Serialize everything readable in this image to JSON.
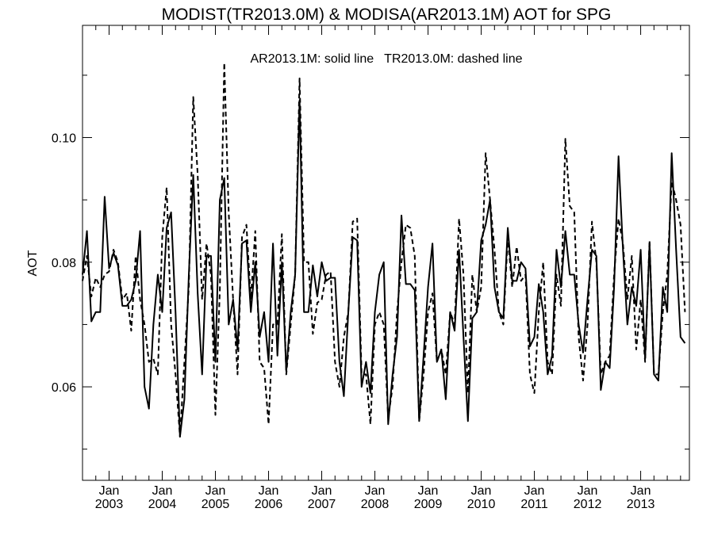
{
  "chart_data": {
    "type": "line",
    "title": "MODIST(TR2013.0M) & MODISA(AR2013.1M)  AOT for SPG",
    "ylabel": "AOT",
    "xlabel": "",
    "annotation": "AR2013.1M: solid line   TR2013.0M: dashed line",
    "x_start": "2002-07",
    "x_step": "1 month",
    "xlim": [
      "2002-07",
      "2013-12"
    ],
    "ylim": [
      0.045,
      0.118
    ],
    "y_ticks": [
      0.06,
      0.08,
      0.1
    ],
    "y_tick_labels": [
      "0.06",
      "0.08",
      "0.10"
    ],
    "x_ticks": [
      {
        "month": "Jan",
        "year": "2003",
        "date": "2003-01"
      },
      {
        "month": "Jan",
        "year": "2004",
        "date": "2004-01"
      },
      {
        "month": "Jan",
        "year": "2005",
        "date": "2005-01"
      },
      {
        "month": "Jan",
        "year": "2006",
        "date": "2006-01"
      },
      {
        "month": "Jan",
        "year": "2007",
        "date": "2007-01"
      },
      {
        "month": "Jan",
        "year": "2008",
        "date": "2008-01"
      },
      {
        "month": "Jan",
        "year": "2009",
        "date": "2009-01"
      },
      {
        "month": "Jan",
        "year": "2010",
        "date": "2010-01"
      },
      {
        "month": "Jan",
        "year": "2011",
        "date": "2011-01"
      },
      {
        "month": "Jan",
        "year": "2012",
        "date": "2012-01"
      },
      {
        "month": "Jan",
        "year": "2013",
        "date": "2013-01"
      }
    ],
    "grid": false,
    "series": [
      {
        "name": "AR2013.1M",
        "style": "solid",
        "color": "#000000",
        "values": [
          0.078,
          0.085,
          0.0705,
          0.072,
          0.072,
          0.0905,
          0.079,
          0.0815,
          0.0795,
          0.073,
          0.073,
          0.074,
          0.077,
          0.085,
          0.06,
          0.0565,
          0.07,
          0.078,
          0.072,
          0.0855,
          0.088,
          0.072,
          0.052,
          0.058,
          0.078,
          0.094,
          0.075,
          0.062,
          0.081,
          0.081,
          0.064,
          0.09,
          0.0935,
          0.07,
          0.074,
          0.066,
          0.083,
          0.0835,
          0.072,
          0.08,
          0.068,
          0.072,
          0.064,
          0.083,
          0.065,
          0.08,
          0.0625,
          0.072,
          0.078,
          0.106,
          0.072,
          0.072,
          0.0795,
          0.0745,
          0.08,
          0.077,
          0.0775,
          0.0775,
          0.064,
          0.0585,
          0.072,
          0.084,
          0.0835,
          0.06,
          0.064,
          0.059,
          0.072,
          0.078,
          0.08,
          0.054,
          0.062,
          0.068,
          0.0875,
          0.0765,
          0.0765,
          0.0755,
          0.0545,
          0.065,
          0.076,
          0.083,
          0.064,
          0.066,
          0.058,
          0.072,
          0.069,
          0.082,
          0.068,
          0.0545,
          0.071,
          0.072,
          0.0835,
          0.086,
          0.09,
          0.076,
          0.072,
          0.071,
          0.0855,
          0.077,
          0.077,
          0.08,
          0.079,
          0.0665,
          0.068,
          0.0765,
          0.072,
          0.062,
          0.065,
          0.082,
          0.076,
          0.085,
          0.078,
          0.078,
          0.07,
          0.0655,
          0.074,
          0.082,
          0.081,
          0.0595,
          0.064,
          0.063,
          0.076,
          0.097,
          0.082,
          0.07,
          0.076,
          0.073,
          0.082,
          0.0645,
          0.083,
          0.062,
          0.061,
          0.076,
          0.072,
          0.0975,
          0.082,
          0.068,
          0.067
        ]
      },
      {
        "name": "TR2013.0M",
        "style": "dashed",
        "color": "#000000",
        "values": [
          0.077,
          0.081,
          0.0745,
          0.0775,
          0.076,
          0.078,
          0.0785,
          0.082,
          0.08,
          0.074,
          0.075,
          0.069,
          0.081,
          0.074,
          0.07,
          0.064,
          0.0645,
          0.062,
          0.084,
          0.092,
          0.07,
          0.062,
          0.052,
          0.064,
          0.076,
          0.1065,
          0.094,
          0.074,
          0.083,
          0.078,
          0.0555,
          0.0755,
          0.112,
          0.088,
          0.074,
          0.062,
          0.084,
          0.086,
          0.074,
          0.085,
          0.064,
          0.063,
          0.054,
          0.07,
          0.07,
          0.0845,
          0.062,
          0.07,
          0.078,
          0.1095,
          0.08,
          0.08,
          0.0685,
          0.0735,
          0.074,
          0.078,
          0.0785,
          0.064,
          0.06,
          0.068,
          0.072,
          0.0865,
          0.087,
          0.062,
          0.062,
          0.054,
          0.07,
          0.072,
          0.07,
          0.055,
          0.06,
          0.072,
          0.08,
          0.086,
          0.0855,
          0.081,
          0.0545,
          0.062,
          0.072,
          0.075,
          0.064,
          0.066,
          0.062,
          0.072,
          0.07,
          0.087,
          0.078,
          0.059,
          0.078,
          0.072,
          0.076,
          0.0975,
          0.09,
          0.082,
          0.072,
          0.07,
          0.084,
          0.076,
          0.0825,
          0.077,
          0.078,
          0.062,
          0.059,
          0.072,
          0.08,
          0.064,
          0.062,
          0.078,
          0.073,
          0.0998,
          0.089,
          0.088,
          0.068,
          0.061,
          0.07,
          0.0865,
          0.08,
          0.062,
          0.064,
          0.065,
          0.078,
          0.087,
          0.083,
          0.074,
          0.081,
          0.066,
          0.074,
          0.064,
          0.0835,
          0.062,
          0.062,
          0.072,
          0.078,
          0.093,
          0.09,
          0.086,
          0.072
        ]
      }
    ]
  }
}
